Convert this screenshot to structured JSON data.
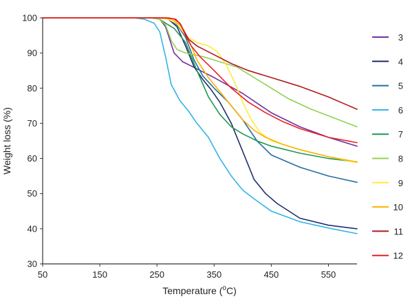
{
  "chart_data": {
    "type": "line",
    "xlabel": "Temperature (",
    "xlabel_sup": "o",
    "xlabel_end": "C)",
    "ylabel": "Weight loss (%)",
    "xlim": [
      50,
      600
    ],
    "ylim": [
      30,
      100
    ],
    "x_ticks": [
      50,
      150,
      250,
      350,
      450,
      550
    ],
    "y_ticks": [
      30,
      40,
      50,
      60,
      70,
      80,
      90,
      100
    ],
    "grid": false,
    "legend_position": "right",
    "series": [
      {
        "name": "3",
        "color": "#7030A0",
        "points": [
          [
            50,
            100
          ],
          [
            240,
            100
          ],
          [
            255,
            99.6
          ],
          [
            265,
            97.5
          ],
          [
            272,
            94
          ],
          [
            280,
            90
          ],
          [
            295,
            87.5
          ],
          [
            320,
            85.5
          ],
          [
            350,
            83
          ],
          [
            400,
            78.5
          ],
          [
            450,
            73
          ],
          [
            500,
            69
          ],
          [
            550,
            66
          ],
          [
            600,
            63.5
          ]
        ]
      },
      {
        "name": "4",
        "color": "#1F2D6B",
        "points": [
          [
            50,
            100
          ],
          [
            250,
            100
          ],
          [
            270,
            99.6
          ],
          [
            285,
            97.5
          ],
          [
            300,
            92
          ],
          [
            315,
            86
          ],
          [
            330,
            82.5
          ],
          [
            345,
            79.5
          ],
          [
            360,
            76
          ],
          [
            380,
            70
          ],
          [
            400,
            62
          ],
          [
            420,
            54
          ],
          [
            440,
            50
          ],
          [
            460,
            47.2
          ],
          [
            500,
            43
          ],
          [
            550,
            41
          ],
          [
            600,
            40
          ]
        ]
      },
      {
        "name": "5",
        "color": "#1F6FA6",
        "points": [
          [
            50,
            100
          ],
          [
            255,
            100
          ],
          [
            270,
            99.7
          ],
          [
            285,
            98
          ],
          [
            300,
            94.5
          ],
          [
            315,
            88
          ],
          [
            330,
            83.5
          ],
          [
            350,
            80
          ],
          [
            375,
            76
          ],
          [
            400,
            71
          ],
          [
            425,
            65
          ],
          [
            450,
            61
          ],
          [
            500,
            57.5
          ],
          [
            550,
            55
          ],
          [
            600,
            53.2
          ]
        ]
      },
      {
        "name": "6",
        "color": "#2EB4E6",
        "points": [
          [
            50,
            100
          ],
          [
            210,
            100
          ],
          [
            228,
            99.6
          ],
          [
            245,
            98.5
          ],
          [
            255,
            96
          ],
          [
            265,
            89
          ],
          [
            275,
            81
          ],
          [
            290,
            76.5
          ],
          [
            305,
            73.5
          ],
          [
            320,
            70
          ],
          [
            340,
            66
          ],
          [
            360,
            60
          ],
          [
            380,
            55
          ],
          [
            400,
            51
          ],
          [
            420,
            48.5
          ],
          [
            450,
            45
          ],
          [
            500,
            42
          ],
          [
            550,
            40.2
          ],
          [
            600,
            38.6
          ]
        ]
      },
      {
        "name": "7",
        "color": "#1E9650",
        "points": [
          [
            50,
            100
          ],
          [
            245,
            100
          ],
          [
            255,
            99.6
          ],
          [
            265,
            98.5
          ],
          [
            280,
            97
          ],
          [
            300,
            93
          ],
          [
            320,
            85
          ],
          [
            340,
            77.5
          ],
          [
            360,
            72.5
          ],
          [
            380,
            69
          ],
          [
            400,
            67
          ],
          [
            425,
            65
          ],
          [
            450,
            63.5
          ],
          [
            500,
            61.5
          ],
          [
            550,
            60
          ],
          [
            600,
            59
          ]
        ]
      },
      {
        "name": "8",
        "color": "#92D050",
        "points": [
          [
            50,
            100
          ],
          [
            240,
            100
          ],
          [
            255,
            99.6
          ],
          [
            265,
            98
          ],
          [
            275,
            93.5
          ],
          [
            285,
            91
          ],
          [
            300,
            90
          ],
          [
            330,
            89
          ],
          [
            360,
            87.5
          ],
          [
            390,
            86
          ],
          [
            420,
            83
          ],
          [
            450,
            80
          ],
          [
            480,
            77
          ],
          [
            520,
            74
          ],
          [
            560,
            71.5
          ],
          [
            600,
            69
          ]
        ]
      },
      {
        "name": "9",
        "color": "#FFEB3B",
        "points": [
          [
            50,
            100
          ],
          [
            250,
            100
          ],
          [
            270,
            99.6
          ],
          [
            285,
            98.3
          ],
          [
            300,
            95
          ],
          [
            320,
            93
          ],
          [
            340,
            92
          ],
          [
            355,
            90.5
          ],
          [
            370,
            87
          ],
          [
            385,
            82
          ],
          [
            400,
            76
          ],
          [
            415,
            71
          ],
          [
            430,
            67.5
          ],
          [
            450,
            65
          ],
          [
            500,
            62.5
          ],
          [
            550,
            60.5
          ],
          [
            600,
            58.8
          ]
        ]
      },
      {
        "name": "10",
        "color": "#FFB000",
        "points": [
          [
            50,
            100
          ],
          [
            255,
            100
          ],
          [
            275,
            99.7
          ],
          [
            290,
            98
          ],
          [
            305,
            94
          ],
          [
            320,
            88
          ],
          [
            340,
            83
          ],
          [
            360,
            79
          ],
          [
            380,
            75
          ],
          [
            400,
            71
          ],
          [
            420,
            68
          ],
          [
            440,
            66
          ],
          [
            470,
            64
          ],
          [
            500,
            62.5
          ],
          [
            550,
            60.5
          ],
          [
            600,
            59
          ]
        ]
      },
      {
        "name": "11",
        "color": "#B0171F",
        "points": [
          [
            50,
            100
          ],
          [
            265,
            100
          ],
          [
            280,
            99.7
          ],
          [
            290,
            98.5
          ],
          [
            305,
            94
          ],
          [
            320,
            92
          ],
          [
            350,
            89.5
          ],
          [
            380,
            87
          ],
          [
            410,
            85
          ],
          [
            450,
            83
          ],
          [
            500,
            80.5
          ],
          [
            550,
            77.5
          ],
          [
            600,
            74
          ]
        ]
      },
      {
        "name": "12",
        "color": "#E81E25",
        "points": [
          [
            50,
            100
          ],
          [
            270,
            100
          ],
          [
            283,
            99.6
          ],
          [
            292,
            98
          ],
          [
            300,
            95
          ],
          [
            310,
            92
          ],
          [
            325,
            89
          ],
          [
            350,
            85
          ],
          [
            380,
            80
          ],
          [
            410,
            76
          ],
          [
            440,
            73
          ],
          [
            470,
            70.5
          ],
          [
            500,
            68.5
          ],
          [
            550,
            66
          ],
          [
            600,
            64.5
          ]
        ]
      }
    ]
  }
}
